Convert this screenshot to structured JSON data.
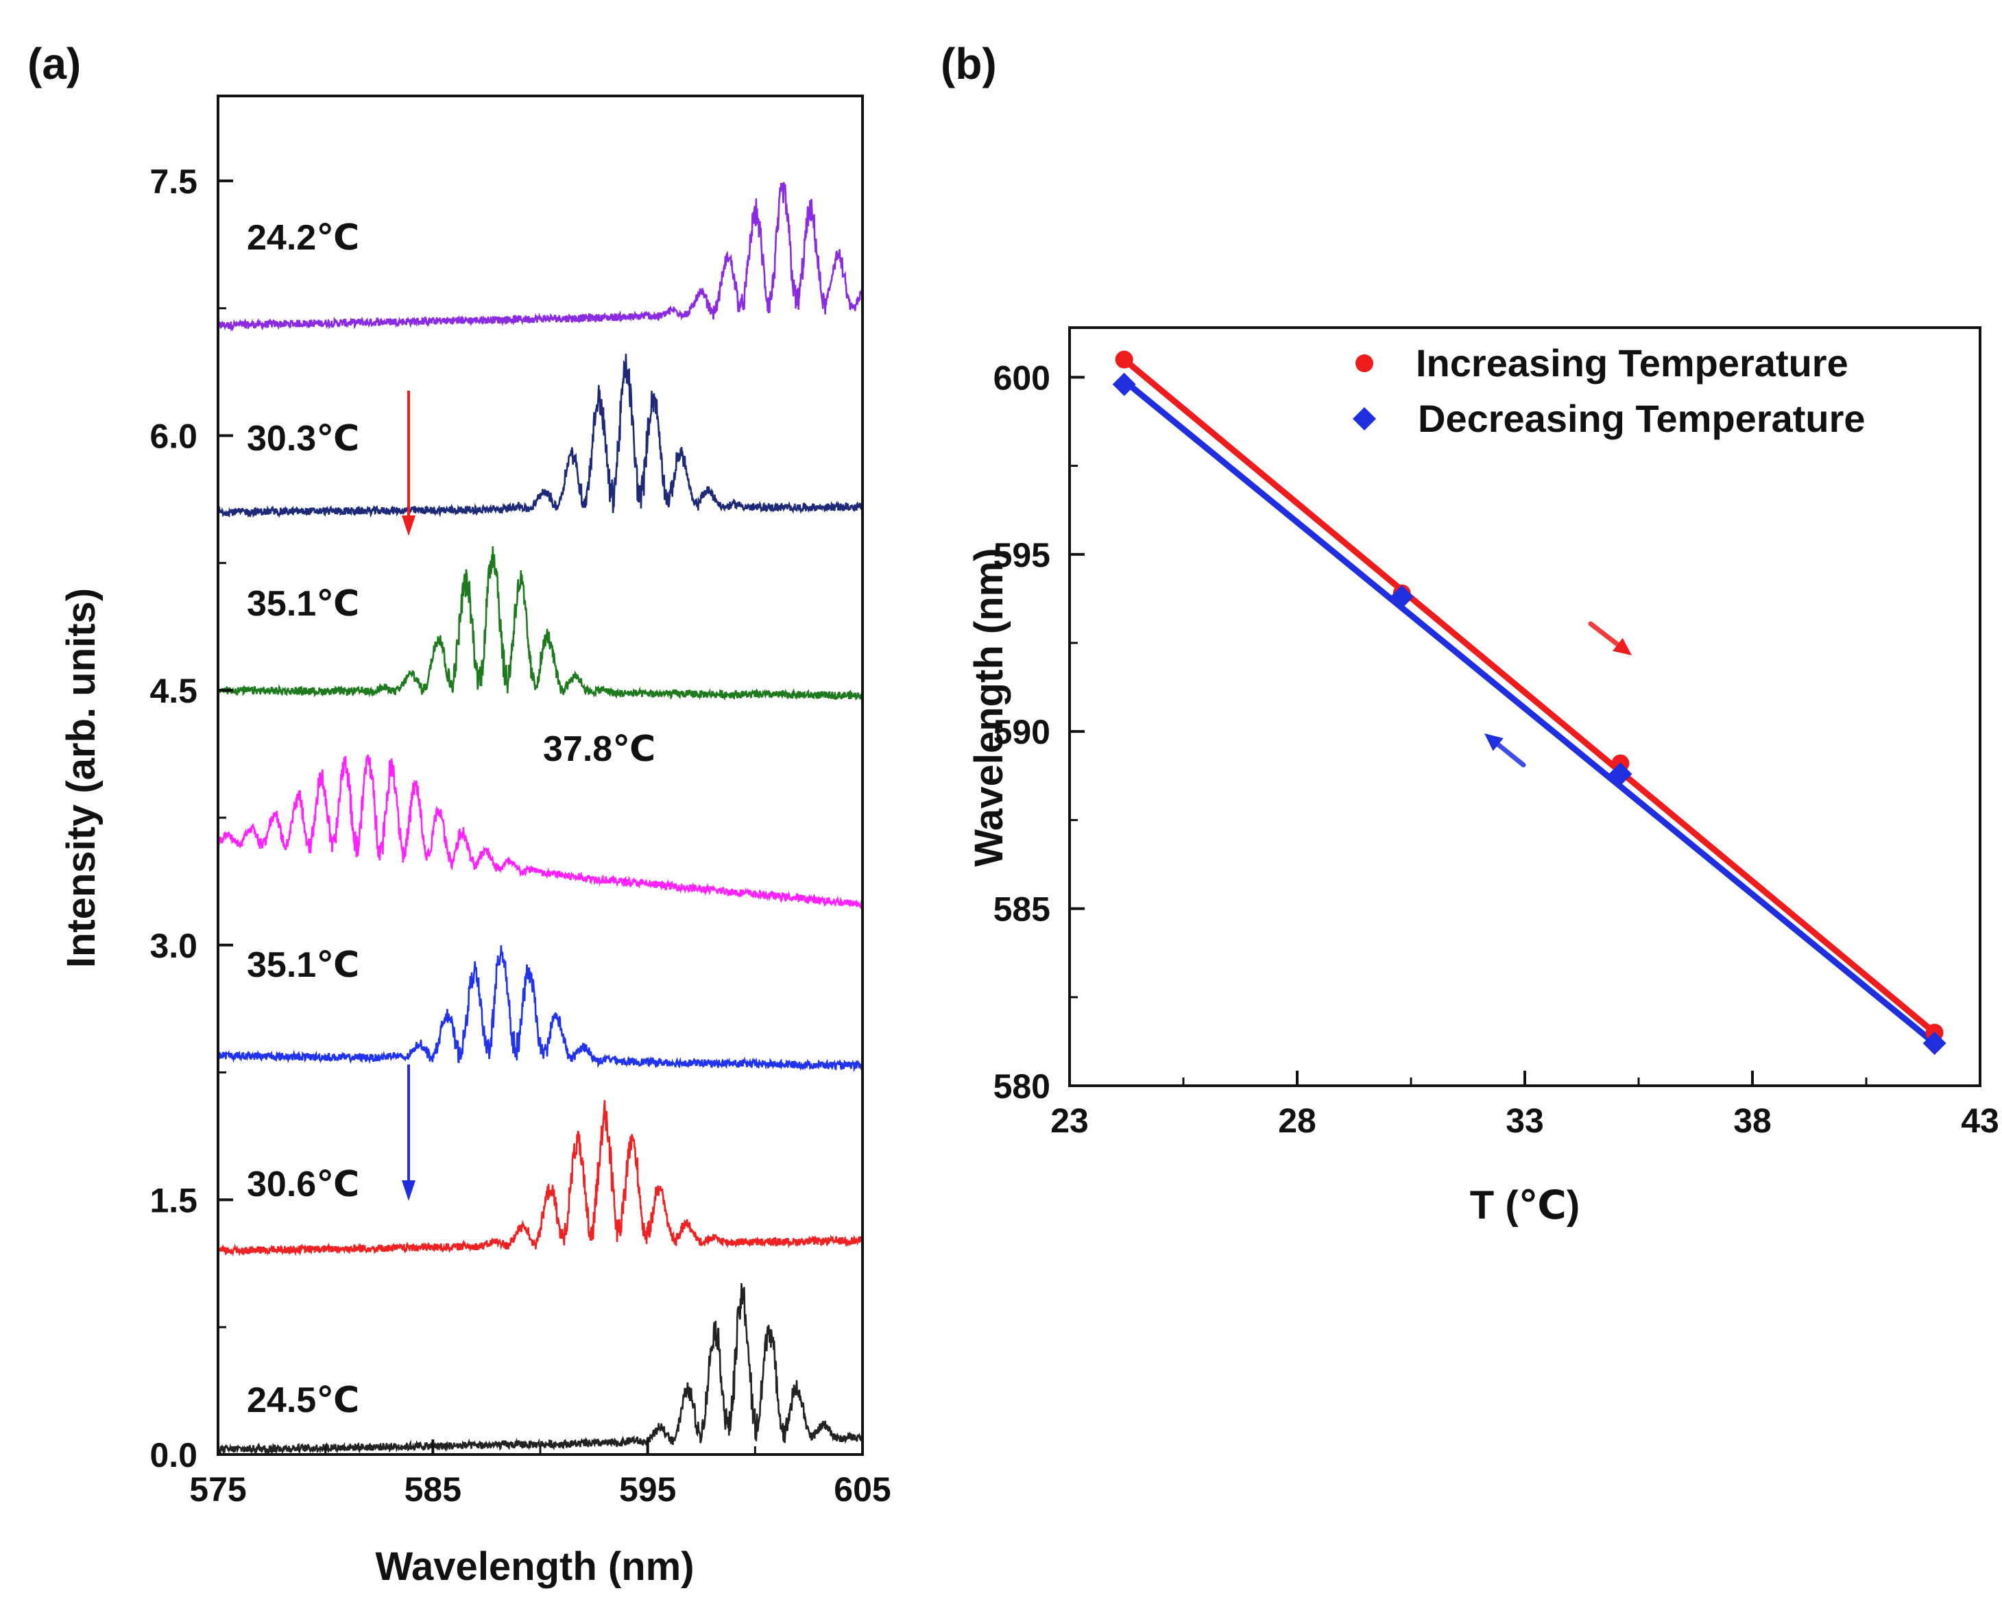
{
  "colors": {
    "axis": "#111111",
    "increasing": "#ee1c1c",
    "decreasing": "#1f2fe0",
    "arrow_down_red": "#ee1c1c",
    "arrow_down_blue": "#1f2fe0"
  },
  "chart_data": [
    {
      "panel_label": "(a)",
      "type": "line",
      "xlabel": "Wavelength (nm)",
      "ylabel": "Intensity (arb. units)",
      "xlim": [
        575,
        605
      ],
      "ylim": [
        0,
        8.0
      ],
      "x_ticks": [
        "575",
        "585",
        "595",
        "605"
      ],
      "y_ticks": [
        "0.0",
        "1.5",
        "3.0",
        "4.5",
        "6.0",
        "7.5"
      ],
      "grid": false,
      "annotations": [
        "downward arrow (red) between 30.3℃ and 35.1℃ traces",
        "downward arrow (blue) beside 30.6℃ trace"
      ],
      "series": [
        {
          "name": "24.2℃",
          "color": "#8a2be2",
          "offset": 6.65,
          "slope": 0.0025,
          "peaks": [
            {
              "center": 601.3,
              "height": 0.72,
              "width": 2.1,
              "period": 1.3
            }
          ]
        },
        {
          "name": "30.3℃",
          "color": "#1e2a78",
          "offset": 5.55,
          "slope": 0.001,
          "peaks": [
            {
              "center": 594.0,
              "height": 0.82,
              "width": 1.9,
              "period": 1.3
            }
          ]
        },
        {
          "name": "35.1℃",
          "color": "#1f7a1f",
          "offset": 4.5,
          "slope": -0.001,
          "peaks": [
            {
              "center": 587.8,
              "height": 0.82,
              "width": 1.9,
              "period": 1.3
            }
          ]
        },
        {
          "name": "37.8℃",
          "color": "#ff22ff",
          "offset": 3.6,
          "slope": -0.012,
          "peaks": [
            {
              "center": 582.0,
              "height": 0.58,
              "width": 3.0,
              "period": 1.1
            }
          ]
        },
        {
          "name": "35.1℃",
          "color": "#2233ee",
          "offset": 2.35,
          "slope": -0.002,
          "peaks": [
            {
              "center": 588.2,
              "height": 0.65,
              "width": 1.9,
              "period": 1.3
            }
          ]
        },
        {
          "name": "30.6℃",
          "color": "#ee2222",
          "offset": 1.2,
          "slope": 0.002,
          "peaks": [
            {
              "center": 593.0,
              "height": 0.75,
              "width": 2.0,
              "period": 1.3
            }
          ]
        },
        {
          "name": "24.5℃",
          "color": "#222222",
          "offset": 0.03,
          "slope": 0.002,
          "peaks": [
            {
              "center": 599.4,
              "height": 0.85,
              "width": 1.8,
              "period": 1.3
            }
          ]
        }
      ]
    },
    {
      "panel_label": "(b)",
      "type": "scatter",
      "xlabel": "T (℃)",
      "ylabel": "Wavelength (nm)",
      "xlim": [
        23,
        43
      ],
      "ylim": [
        580,
        601.4
      ],
      "x_ticks": [
        "23",
        "28",
        "33",
        "38",
        "43"
      ],
      "y_ticks": [
        "580",
        "585",
        "590",
        "595",
        "600"
      ],
      "grid": false,
      "legend_position": "top-right",
      "series": [
        {
          "name": "Increasing Temperature",
          "marker": "circle",
          "color": "#ee1c1c",
          "x": [
            24.2,
            30.3,
            35.1,
            42.0
          ],
          "y": [
            600.5,
            593.9,
            589.1,
            581.5
          ]
        },
        {
          "name": "Decreasing Temperature",
          "marker": "diamond",
          "color": "#1f2fe0",
          "x": [
            24.2,
            30.3,
            35.1,
            42.0
          ],
          "y": [
            599.8,
            593.8,
            588.8,
            581.2
          ]
        }
      ],
      "fit_lines": [
        {
          "series": "Increasing Temperature",
          "x": [
            24.2,
            42.0
          ],
          "y": [
            600.5,
            581.5
          ]
        },
        {
          "series": "Decreasing Temperature",
          "x": [
            24.2,
            42.0
          ],
          "y": [
            599.9,
            581.2
          ]
        }
      ]
    }
  ]
}
